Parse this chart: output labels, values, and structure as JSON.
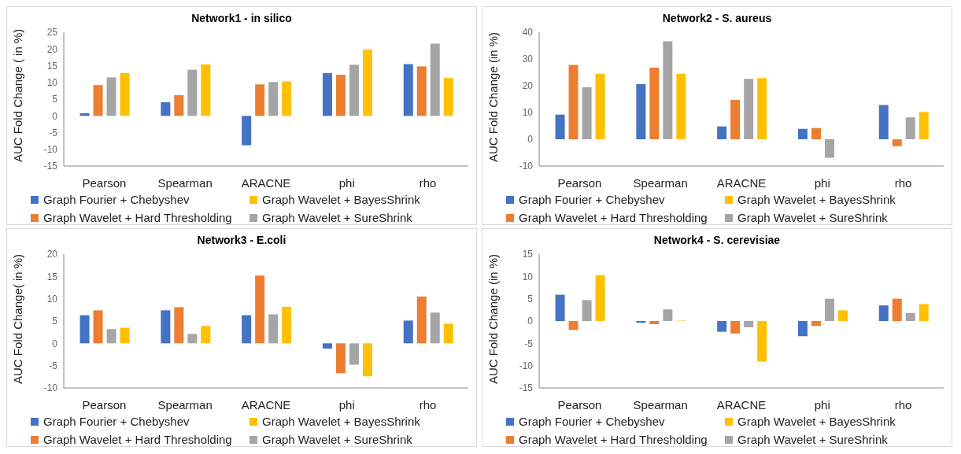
{
  "chart_data": [
    {
      "type": "bar",
      "title": "Network1 - in silico",
      "ylabel": "AUC Fold Change ( in %)",
      "categories": [
        "Pearson",
        "Spearman",
        "ARACNE",
        "phi",
        "rho"
      ],
      "ylim": [
        -15,
        25
      ],
      "yticks": [
        -15,
        -10,
        -5,
        0,
        5,
        10,
        15,
        20,
        25
      ],
      "legend": "bottom",
      "grid": false,
      "series": [
        {
          "name": "Graph Fourier + Chebyshev",
          "color": "#4472c4",
          "values": [
            0.8,
            4.1,
            -8.8,
            12.8,
            15.5
          ]
        },
        {
          "name": "Graph Wavelet + Hard Thresholding",
          "color": "#ed7d31",
          "values": [
            9.2,
            6.2,
            9.4,
            12.3,
            14.8
          ]
        },
        {
          "name": "Graph Wavelet + SureShrink",
          "color": "#a5a5a5",
          "values": [
            11.5,
            13.8,
            10.1,
            15.3,
            21.6
          ]
        },
        {
          "name": "Graph Wavelet + BayesShrink",
          "color": "#ffc000",
          "values": [
            12.8,
            15.4,
            10.3,
            19.8,
            11.3
          ]
        }
      ]
    },
    {
      "type": "bar",
      "title": "Network2 - S. aureus",
      "ylabel": "AUC Fold Change (in %)",
      "categories": [
        "Pearson",
        "Spearman",
        "ARACNE",
        "phi",
        "rho"
      ],
      "ylim": [
        -10,
        40
      ],
      "yticks": [
        -10,
        0,
        10,
        20,
        30,
        40
      ],
      "legend": "bottom",
      "grid": false,
      "series": [
        {
          "name": "Graph Fourier + Chebyshev",
          "color": "#4472c4",
          "values": [
            9.2,
            20.6,
            4.8,
            3.9,
            12.8
          ]
        },
        {
          "name": "Graph Wavelet + Hard Thresholding",
          "color": "#ed7d31",
          "values": [
            27.8,
            26.8,
            14.7,
            4.2,
            -2.6
          ]
        },
        {
          "name": "Graph Wavelet + SureShrink",
          "color": "#a5a5a5",
          "values": [
            19.5,
            36.6,
            22.6,
            -6.9,
            8.2
          ]
        },
        {
          "name": "Graph Wavelet + BayesShrink",
          "color": "#ffc000",
          "values": [
            24.5,
            24.5,
            22.9,
            0,
            10.2
          ]
        }
      ]
    },
    {
      "type": "bar",
      "title": "Network3 - E.coli",
      "ylabel": "AUC Fold Change( in %)",
      "categories": [
        "Pearson",
        "Spearman",
        "ARACNE",
        "phi",
        "rho"
      ],
      "ylim": [
        -10,
        20
      ],
      "yticks": [
        -10,
        -5,
        0,
        5,
        10,
        15,
        20
      ],
      "legend": "bottom",
      "grid": false,
      "series": [
        {
          "name": "Graph Fourier + Chebyshev",
          "color": "#4472c4",
          "values": [
            6.3,
            7.4,
            6.3,
            -1.2,
            5.1
          ]
        },
        {
          "name": "Graph Wavelet + Hard Thresholding",
          "color": "#ed7d31",
          "values": [
            7.4,
            8.1,
            15.2,
            -6.7,
            10.5
          ]
        },
        {
          "name": "Graph Wavelet + SureShrink",
          "color": "#a5a5a5",
          "values": [
            3.2,
            2.1,
            6.5,
            -4.8,
            6.9
          ]
        },
        {
          "name": "Graph Wavelet + BayesShrink",
          "color": "#ffc000",
          "values": [
            3.5,
            3.9,
            8.2,
            -7.4,
            4.4
          ]
        }
      ]
    },
    {
      "type": "bar",
      "title": "Network4 - S. cerevisiae",
      "ylabel": "AUC Fold Change (in %)",
      "categories": [
        "Pearson",
        "Spearman",
        "ARACNE",
        "phi",
        "rho"
      ],
      "ylim": [
        -15,
        15
      ],
      "yticks": [
        -15,
        -10,
        -5,
        0,
        5,
        10,
        15
      ],
      "legend": "bottom",
      "grid": false,
      "series": [
        {
          "name": "Graph Fourier + Chebyshev",
          "color": "#4472c4",
          "values": [
            5.9,
            -0.4,
            -2.4,
            -3.4,
            3.5
          ]
        },
        {
          "name": "Graph Wavelet + Hard Thresholding",
          "color": "#ed7d31",
          "values": [
            -2.0,
            -0.7,
            -2.8,
            -1.1,
            5.0
          ]
        },
        {
          "name": "Graph Wavelet + SureShrink",
          "color": "#a5a5a5",
          "values": [
            4.7,
            2.6,
            -1.4,
            5.0,
            1.8
          ]
        },
        {
          "name": "Graph Wavelet + BayesShrink",
          "color": "#ffc000",
          "values": [
            10.3,
            0.1,
            -9.1,
            2.4,
            3.8
          ]
        }
      ]
    }
  ]
}
